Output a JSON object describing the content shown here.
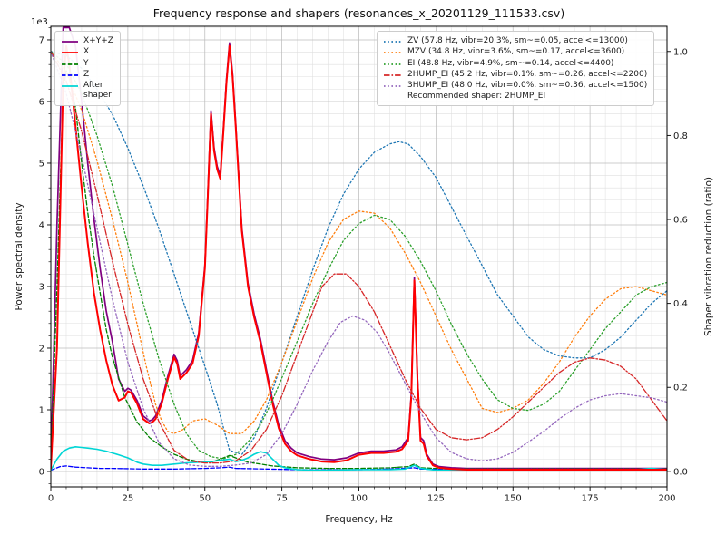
{
  "chart_data": {
    "type": "line",
    "title": "Frequency response and shapers (resonances_x_20201129_111533.csv)",
    "xlabel": "Frequency, Hz",
    "ylabel_left": "Power spectral density",
    "ylabel_right": "Shaper vibration reduction (ratio)",
    "y_offset_label": "1e3",
    "grid": true,
    "legend_left_position": "upper left",
    "legend_right_position": "upper right",
    "axes": {
      "x_min": 0,
      "x_max": 200,
      "y_left_min": -0.25,
      "y_left_max": 7.22,
      "y_right_min": -0.037,
      "y_right_max": 1.06
    },
    "x_ticks": [
      0,
      25,
      50,
      75,
      100,
      125,
      150,
      175,
      200
    ],
    "x_minor_step": 5,
    "y_left_ticks": [
      0,
      1,
      2,
      3,
      4,
      5,
      6,
      7
    ],
    "y_left_minor_step": 0.2,
    "y_right_ticks": [
      "0.0",
      "0.2",
      "0.4",
      "0.6",
      "0.8",
      "1.0"
    ],
    "recommended_shaper": "2HUMP_EI",
    "legend_note": "Recommended shaper: 2HUMP_EI",
    "psd_series": [
      {
        "name": "X+Y+Z",
        "label": "X+Y+Z",
        "color": "#800080",
        "style": "solid",
        "x": [
          0,
          2,
          4,
          6,
          8,
          10,
          12,
          14,
          16,
          18,
          20,
          22,
          24,
          25,
          26,
          28,
          30,
          32,
          33,
          34,
          36,
          38,
          40,
          41,
          42,
          44,
          46,
          48,
          50,
          51,
          52,
          53,
          54,
          55,
          56,
          57,
          58,
          59,
          60,
          62,
          64,
          66,
          68,
          70,
          72,
          74,
          76,
          78,
          80,
          84,
          88,
          92,
          96,
          100,
          104,
          108,
          112,
          114,
          116,
          117,
          118,
          119,
          120,
          121,
          122,
          124,
          126,
          130,
          135,
          140,
          150,
          160,
          170,
          180,
          190,
          200
        ],
        "y": [
          0.1,
          4.0,
          7.2,
          7.2,
          6.9,
          6.0,
          5.0,
          4.1,
          3.3,
          2.6,
          2.1,
          1.5,
          1.3,
          1.35,
          1.32,
          1.15,
          0.9,
          0.82,
          0.84,
          0.9,
          1.15,
          1.55,
          1.9,
          1.8,
          1.55,
          1.65,
          1.8,
          2.25,
          3.35,
          4.55,
          5.85,
          5.25,
          4.95,
          4.8,
          5.55,
          6.35,
          6.95,
          6.45,
          5.65,
          3.95,
          3.05,
          2.55,
          2.15,
          1.65,
          1.15,
          0.75,
          0.5,
          0.38,
          0.3,
          0.24,
          0.2,
          0.19,
          0.22,
          0.3,
          0.33,
          0.33,
          0.35,
          0.4,
          0.55,
          1.25,
          3.15,
          1.55,
          0.55,
          0.5,
          0.28,
          0.12,
          0.08,
          0.06,
          0.05,
          0.05,
          0.05,
          0.05,
          0.05,
          0.05,
          0.05,
          0.05
        ]
      },
      {
        "name": "Y",
        "label": "Y",
        "color": "#008000",
        "style": "dashed",
        "x": [
          0,
          2,
          4,
          5,
          6,
          8,
          10,
          12,
          14,
          16,
          18,
          20,
          24,
          28,
          32,
          36,
          40,
          44,
          48,
          52,
          55,
          58,
          60,
          64,
          68,
          72,
          80,
          90,
          100,
          110,
          116,
          118,
          120,
          125,
          130,
          140,
          160,
          180,
          200
        ],
        "y": [
          0.05,
          3.0,
          6.2,
          6.5,
          6.4,
          5.9,
          5.0,
          4.2,
          3.5,
          2.9,
          2.3,
          1.85,
          1.2,
          0.8,
          0.55,
          0.4,
          0.28,
          0.2,
          0.16,
          0.15,
          0.2,
          0.26,
          0.22,
          0.15,
          0.12,
          0.09,
          0.06,
          0.05,
          0.05,
          0.06,
          0.08,
          0.12,
          0.06,
          0.05,
          0.04,
          0.04,
          0.04,
          0.04,
          0.04
        ]
      },
      {
        "name": "Z",
        "label": "Z",
        "color": "#0000ff",
        "style": "dashed",
        "x": [
          0,
          3,
          5,
          8,
          12,
          16,
          20,
          30,
          40,
          50,
          55,
          58,
          60,
          70,
          80,
          90,
          100,
          110,
          118,
          120,
          130,
          140,
          160,
          180,
          200
        ],
        "y": [
          0.02,
          0.08,
          0.09,
          0.07,
          0.06,
          0.05,
          0.05,
          0.04,
          0.04,
          0.05,
          0.06,
          0.07,
          0.05,
          0.04,
          0.03,
          0.03,
          0.03,
          0.04,
          0.06,
          0.04,
          0.03,
          0.03,
          0.03,
          0.03,
          0.03
        ]
      },
      {
        "name": "After shaper",
        "label": "After\nshaper",
        "color": "#00d5d5",
        "style": "solid",
        "x": [
          0,
          2,
          4,
          6,
          8,
          10,
          12,
          15,
          18,
          20,
          22,
          25,
          28,
          30,
          33,
          36,
          40,
          44,
          48,
          52,
          55,
          58,
          60,
          62,
          64,
          66,
          68,
          70,
          72,
          74,
          76,
          80,
          85,
          90,
          100,
          110,
          115,
          117,
          118,
          120,
          125,
          140,
          160,
          180,
          190,
          195,
          200
        ],
        "y": [
          0.02,
          0.2,
          0.33,
          0.38,
          0.4,
          0.39,
          0.38,
          0.36,
          0.33,
          0.3,
          0.27,
          0.22,
          0.15,
          0.12,
          0.1,
          0.1,
          0.12,
          0.14,
          0.15,
          0.16,
          0.18,
          0.2,
          0.16,
          0.18,
          0.22,
          0.28,
          0.32,
          0.3,
          0.2,
          0.1,
          0.06,
          0.03,
          0.02,
          0.02,
          0.03,
          0.03,
          0.04,
          0.08,
          0.1,
          0.05,
          0.02,
          0.02,
          0.02,
          0.02,
          0.03,
          0.05,
          0.03
        ]
      },
      {
        "name": "X",
        "label": "X",
        "color": "#ff0000",
        "style": "solid",
        "x": [
          0,
          2,
          4,
          5,
          6,
          8,
          10,
          12,
          14,
          16,
          18,
          20,
          22,
          24,
          25,
          26,
          28,
          30,
          32,
          33,
          34,
          36,
          38,
          40,
          41,
          42,
          44,
          46,
          48,
          50,
          51,
          52,
          53,
          54,
          55,
          56,
          57,
          58,
          59,
          60,
          62,
          64,
          66,
          68,
          70,
          72,
          74,
          76,
          78,
          80,
          84,
          88,
          92,
          96,
          100,
          104,
          108,
          112,
          114,
          116,
          117,
          118,
          119,
          120,
          121,
          122,
          124,
          126,
          130,
          135,
          140,
          150,
          160,
          170,
          180,
          190,
          200
        ],
        "y": [
          0.05,
          2.0,
          6.3,
          6.9,
          6.6,
          5.6,
          4.6,
          3.7,
          2.9,
          2.3,
          1.8,
          1.4,
          1.15,
          1.2,
          1.3,
          1.28,
          1.1,
          0.85,
          0.78,
          0.8,
          0.85,
          1.1,
          1.5,
          1.85,
          1.75,
          1.5,
          1.6,
          1.75,
          2.2,
          3.3,
          4.5,
          5.8,
          5.2,
          4.9,
          4.75,
          5.5,
          6.3,
          6.9,
          6.4,
          5.6,
          3.9,
          3.0,
          2.5,
          2.1,
          1.6,
          1.1,
          0.7,
          0.45,
          0.33,
          0.26,
          0.2,
          0.16,
          0.15,
          0.18,
          0.27,
          0.3,
          0.3,
          0.32,
          0.36,
          0.5,
          1.2,
          3.1,
          1.5,
          0.5,
          0.45,
          0.25,
          0.1,
          0.06,
          0.04,
          0.03,
          0.03,
          0.03,
          0.03,
          0.03,
          0.03,
          0.03,
          0.03
        ]
      }
    ],
    "shaper_series": [
      {
        "name": "ZV",
        "label": "ZV (57.8 Hz, vibr=20.3%, sm~=0.05, accel<=13000)",
        "color": "#1f77b4",
        "style": "dotted",
        "x": [
          0,
          5,
          10,
          15,
          20,
          25,
          30,
          35,
          40,
          45,
          50,
          54,
          58,
          62,
          66,
          70,
          75,
          80,
          85,
          90,
          95,
          100,
          105,
          110,
          113,
          116,
          120,
          125,
          130,
          135,
          140,
          145,
          150,
          155,
          160,
          165,
          170,
          175,
          180,
          185,
          190,
          195,
          200
        ],
        "y": [
          1.0,
          0.99,
          0.96,
          0.91,
          0.85,
          0.77,
          0.68,
          0.58,
          0.47,
          0.36,
          0.25,
          0.16,
          0.05,
          0.04,
          0.08,
          0.15,
          0.26,
          0.37,
          0.48,
          0.58,
          0.66,
          0.72,
          0.76,
          0.78,
          0.785,
          0.78,
          0.75,
          0.7,
          0.63,
          0.56,
          0.49,
          0.42,
          0.37,
          0.32,
          0.29,
          0.275,
          0.27,
          0.27,
          0.29,
          0.32,
          0.36,
          0.4,
          0.43
        ]
      },
      {
        "name": "MZV",
        "label": "MZV (34.8 Hz, vibr=3.6%, sm~=0.17, accel<=3600)",
        "color": "#ff7f0e",
        "style": "dotted",
        "x": [
          0,
          5,
          10,
          15,
          20,
          25,
          28,
          31,
          34,
          36,
          38,
          40,
          43,
          46,
          50,
          54,
          58,
          62,
          66,
          70,
          75,
          80,
          85,
          90,
          95,
          100,
          105,
          110,
          115,
          120,
          125,
          130,
          135,
          140,
          145,
          150,
          155,
          160,
          165,
          170,
          175,
          180,
          185,
          190,
          195,
          200
        ],
        "y": [
          1.0,
          0.95,
          0.86,
          0.74,
          0.6,
          0.45,
          0.35,
          0.25,
          0.16,
          0.12,
          0.095,
          0.09,
          0.1,
          0.12,
          0.125,
          0.11,
          0.09,
          0.09,
          0.12,
          0.17,
          0.26,
          0.36,
          0.46,
          0.545,
          0.6,
          0.62,
          0.615,
          0.58,
          0.52,
          0.45,
          0.37,
          0.29,
          0.22,
          0.15,
          0.14,
          0.15,
          0.17,
          0.21,
          0.26,
          0.32,
          0.37,
          0.41,
          0.435,
          0.44,
          0.43,
          0.42
        ]
      },
      {
        "name": "EI",
        "label": "EI (48.8 Hz, vibr=4.9%, sm~=0.14, accel<=4400)",
        "color": "#2ca02c",
        "style": "dotted",
        "x": [
          0,
          5,
          10,
          15,
          20,
          25,
          30,
          35,
          40,
          44,
          48,
          52,
          56,
          60,
          64,
          68,
          72,
          76,
          80,
          85,
          90,
          95,
          100,
          105,
          110,
          115,
          120,
          125,
          130,
          135,
          140,
          145,
          150,
          155,
          160,
          165,
          170,
          175,
          180,
          185,
          190,
          195,
          200
        ],
        "y": [
          1.0,
          0.97,
          0.9,
          0.8,
          0.68,
          0.54,
          0.4,
          0.27,
          0.16,
          0.09,
          0.05,
          0.035,
          0.03,
          0.04,
          0.07,
          0.11,
          0.17,
          0.24,
          0.31,
          0.4,
          0.48,
          0.55,
          0.59,
          0.61,
          0.6,
          0.56,
          0.5,
          0.43,
          0.35,
          0.28,
          0.22,
          0.17,
          0.15,
          0.145,
          0.16,
          0.19,
          0.24,
          0.29,
          0.34,
          0.38,
          0.42,
          0.44,
          0.45
        ]
      },
      {
        "name": "2HUMP_EI",
        "label": "2HUMP_EI (45.2 Hz, vibr=0.1%, sm~=0.26, accel<=2200)",
        "color": "#d62728",
        "style": "dashdot",
        "x": [
          0,
          5,
          10,
          15,
          20,
          25,
          30,
          35,
          40,
          45,
          50,
          55,
          60,
          65,
          70,
          75,
          80,
          85,
          88,
          92,
          96,
          100,
          105,
          110,
          115,
          120,
          125,
          130,
          135,
          140,
          145,
          150,
          155,
          160,
          165,
          170,
          175,
          180,
          185,
          190,
          195,
          200
        ],
        "y": [
          1.0,
          0.93,
          0.81,
          0.66,
          0.5,
          0.35,
          0.22,
          0.12,
          0.05,
          0.025,
          0.02,
          0.02,
          0.025,
          0.05,
          0.1,
          0.18,
          0.28,
          0.38,
          0.44,
          0.47,
          0.47,
          0.44,
          0.38,
          0.3,
          0.22,
          0.15,
          0.1,
          0.08,
          0.075,
          0.08,
          0.1,
          0.13,
          0.165,
          0.2,
          0.235,
          0.26,
          0.27,
          0.265,
          0.25,
          0.22,
          0.17,
          0.12
        ]
      },
      {
        "name": "3HUMP_EI",
        "label": "3HUMP_EI (48.0 Hz, vibr=0.0%, sm~=0.36, accel<=1500)",
        "color": "#9467bd",
        "style": "dotted",
        "x": [
          0,
          5,
          10,
          15,
          20,
          25,
          30,
          35,
          40,
          45,
          50,
          55,
          60,
          65,
          70,
          75,
          80,
          85,
          90,
          94,
          98,
          102,
          106,
          110,
          115,
          120,
          125,
          130,
          135,
          140,
          145,
          150,
          155,
          160,
          165,
          170,
          175,
          180,
          185,
          190,
          195,
          200
        ],
        "y": [
          1.0,
          0.9,
          0.75,
          0.58,
          0.41,
          0.26,
          0.15,
          0.07,
          0.03,
          0.015,
          0.012,
          0.012,
          0.015,
          0.02,
          0.04,
          0.09,
          0.16,
          0.24,
          0.31,
          0.355,
          0.37,
          0.36,
          0.33,
          0.28,
          0.21,
          0.14,
          0.08,
          0.045,
          0.03,
          0.025,
          0.03,
          0.045,
          0.07,
          0.095,
          0.125,
          0.15,
          0.17,
          0.18,
          0.185,
          0.18,
          0.175,
          0.165
        ]
      }
    ]
  }
}
